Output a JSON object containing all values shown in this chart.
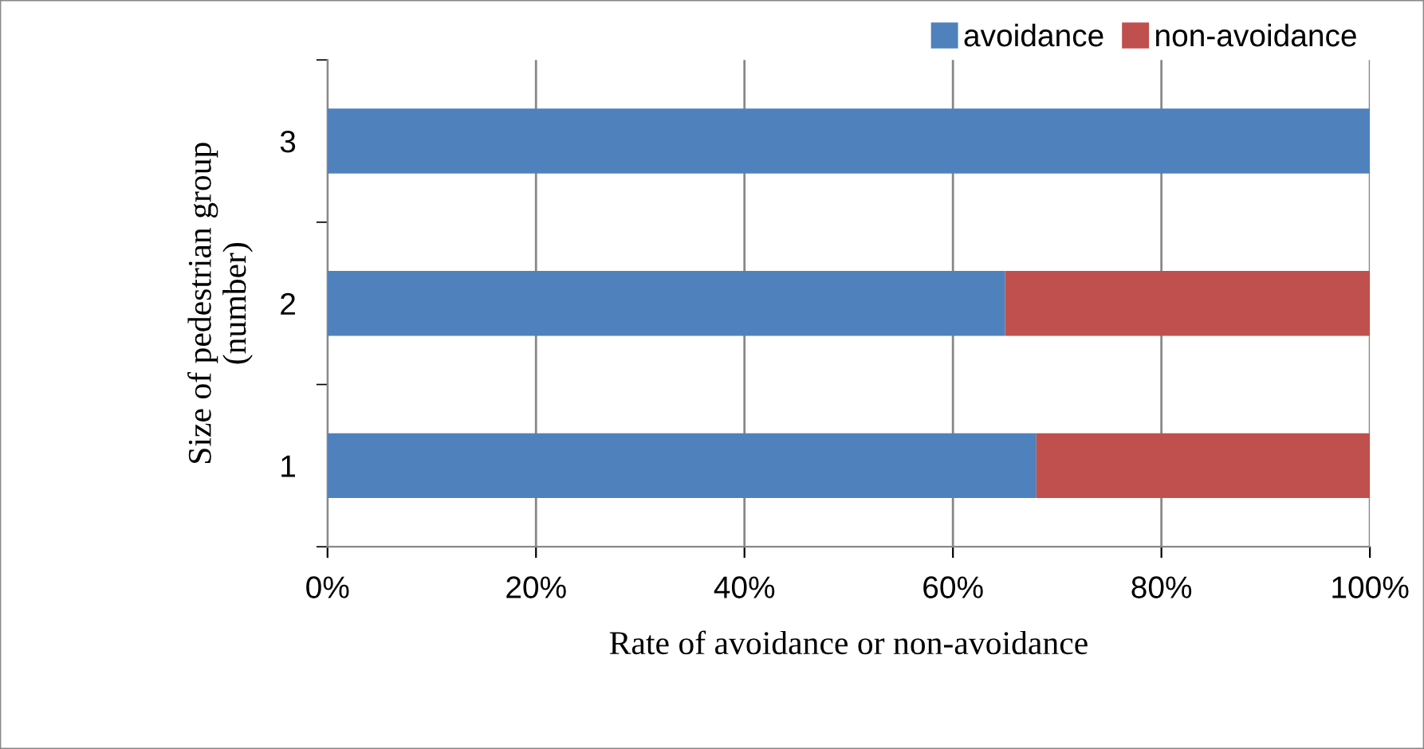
{
  "chart_data": {
    "type": "bar",
    "orientation": "horizontal",
    "stacked": true,
    "categories": [
      "3",
      "2",
      "1"
    ],
    "series": [
      {
        "name": "avoidance",
        "color": "#4f81bd",
        "values": [
          100,
          65,
          68
        ]
      },
      {
        "name": "non-avoidance",
        "color": "#c0504d",
        "values": [
          0,
          35,
          32
        ]
      }
    ],
    "xlabel": "Rate of avoidance or non-avoidance",
    "ylabel": "Size of pedestrian group\n(number)",
    "xlim": [
      0,
      100
    ],
    "xticks": [
      {
        "value": 0,
        "label": "0%"
      },
      {
        "value": 20,
        "label": "20%"
      },
      {
        "value": 40,
        "label": "40%"
      },
      {
        "value": 60,
        "label": "60%"
      },
      {
        "value": 80,
        "label": "80%"
      },
      {
        "value": 100,
        "label": "100%"
      }
    ],
    "grid": "x",
    "legend": "top right"
  }
}
